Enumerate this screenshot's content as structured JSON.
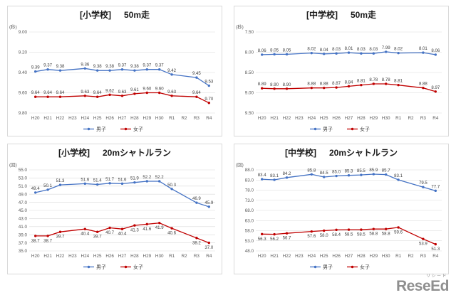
{
  "logo": {
    "ruby": "リシード",
    "text": "ReseEd"
  },
  "legend": {
    "male_label": "男子",
    "female_label": "女子"
  },
  "colors": {
    "male": "#4472C4",
    "female": "#C00000",
    "grid": "#D9D9D9",
    "tick_text": "#595959",
    "label_text": "#3F3F3F",
    "title_text": "#1A1A1A"
  },
  "chart_data": [
    {
      "type": "line",
      "title_school": "[小学校]",
      "title_event": "50m走",
      "unit": "(秒)",
      "y_reversed": true,
      "ylim": [
        9.0,
        9.8
      ],
      "yticks": [
        "9.00",
        "9.20",
        "9.40",
        "9.60",
        "9.80"
      ],
      "value_decimals": 2,
      "grid": true,
      "legend_position": "bottom",
      "categories": [
        "H20",
        "H21",
        "H22",
        "H23",
        "H24",
        "H25",
        "H26",
        "H27",
        "H28",
        "H29",
        "H30",
        "R1",
        "R2",
        "R3",
        "R4"
      ],
      "series": [
        {
          "name": "男子",
          "color_key": "male",
          "label_pos": "above",
          "values": [
            9.39,
            9.37,
            9.38,
            null,
            9.36,
            9.38,
            9.38,
            9.37,
            9.38,
            9.37,
            9.37,
            9.42,
            null,
            9.45,
            9.53
          ]
        },
        {
          "name": "女子",
          "color_key": "female",
          "label_pos": "above",
          "values": [
            9.64,
            9.64,
            9.64,
            null,
            9.63,
            9.64,
            9.62,
            9.63,
            9.61,
            9.6,
            9.6,
            9.63,
            null,
            9.64,
            9.7
          ]
        }
      ]
    },
    {
      "type": "line",
      "title_school": "[中学校]",
      "title_event": "50m走",
      "unit": "(秒)",
      "y_reversed": true,
      "ylim": [
        7.5,
        9.5
      ],
      "yticks": [
        "7.50",
        "8.00",
        "8.50",
        "9.00",
        "9.50"
      ],
      "value_decimals": 2,
      "grid": true,
      "legend_position": "bottom",
      "categories": [
        "H20",
        "H21",
        "H22",
        "H23",
        "H24",
        "H25",
        "H26",
        "H27",
        "H28",
        "H29",
        "H30",
        "R1",
        "R2",
        "R3",
        "R4"
      ],
      "series": [
        {
          "name": "男子",
          "color_key": "male",
          "label_pos": "above",
          "values": [
            8.06,
            8.05,
            8.05,
            null,
            8.02,
            8.04,
            8.03,
            8.01,
            8.03,
            8.03,
            7.99,
            8.02,
            null,
            8.01,
            8.06
          ]
        },
        {
          "name": "女子",
          "color_key": "female",
          "label_pos": "above",
          "values": [
            8.89,
            8.9,
            8.9,
            null,
            8.88,
            8.88,
            8.87,
            8.84,
            8.81,
            8.78,
            8.78,
            8.81,
            null,
            8.88,
            8.97
          ]
        }
      ]
    },
    {
      "type": "line",
      "title_school": "[小学校]",
      "title_event": "20mシャトルラン",
      "unit": "(回)",
      "y_reversed": false,
      "ylim": [
        35.0,
        55.0
      ],
      "yticks": [
        "35.0",
        "37.0",
        "39.0",
        "41.0",
        "43.0",
        "45.0",
        "47.0",
        "49.0",
        "51.0",
        "53.0",
        "55.0"
      ],
      "value_decimals": 1,
      "grid": true,
      "legend_position": "bottom",
      "categories": [
        "H20",
        "H21",
        "H22",
        "H23",
        "H24",
        "H25",
        "H26",
        "H27",
        "H28",
        "H29",
        "H30",
        "R1",
        "R2",
        "R3",
        "R4"
      ],
      "series": [
        {
          "name": "男子",
          "color_key": "male",
          "label_pos": "above",
          "values": [
            49.4,
            50.1,
            51.3,
            null,
            51.6,
            51.4,
            51.7,
            51.6,
            51.9,
            52.2,
            52.2,
            50.3,
            null,
            46.9,
            45.9
          ]
        },
        {
          "name": "女子",
          "color_key": "female",
          "label_pos": "below",
          "values": [
            38.7,
            38.7,
            39.7,
            null,
            40.4,
            39.7,
            40.7,
            40.4,
            41.3,
            41.6,
            41.9,
            40.6,
            null,
            38.2,
            37.0
          ]
        }
      ]
    },
    {
      "type": "line",
      "title_school": "[中学校]",
      "title_event": "20mシャトルラン",
      "unit": "(回)",
      "y_reversed": false,
      "ylim": [
        48.0,
        88.0
      ],
      "yticks": [
        "48.0",
        "53.0",
        "58.0",
        "63.0",
        "68.0",
        "73.0",
        "78.0",
        "83.0",
        "88.0"
      ],
      "value_decimals": 1,
      "grid": true,
      "legend_position": "bottom",
      "categories": [
        "H20",
        "H21",
        "H22",
        "H23",
        "H24",
        "H25",
        "H26",
        "H27",
        "H28",
        "H29",
        "H30",
        "R1",
        "R2",
        "R3",
        "R4"
      ],
      "series": [
        {
          "name": "男子",
          "color_key": "male",
          "label_pos": "above",
          "values": [
            83.4,
            83.1,
            84.2,
            null,
            85.8,
            84.5,
            85.0,
            85.3,
            85.5,
            85.9,
            85.7,
            83.1,
            null,
            79.5,
            77.7
          ]
        },
        {
          "name": "女子",
          "color_key": "female",
          "label_pos": "below",
          "values": [
            56.3,
            56.2,
            56.7,
            null,
            57.6,
            58.0,
            58.4,
            58.5,
            58.5,
            58.8,
            58.8,
            59.6,
            null,
            53.9,
            51.3
          ]
        }
      ]
    }
  ]
}
